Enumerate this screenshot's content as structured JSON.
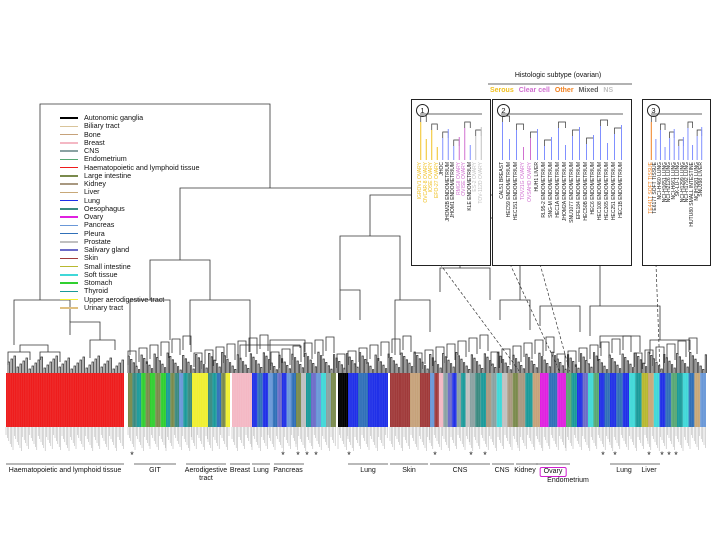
{
  "legend": [
    {
      "label": "Autonomic ganglia",
      "color": "#000000"
    },
    {
      "label": "Biliary tract",
      "color": "#d9c49a"
    },
    {
      "label": "Bone",
      "color": "#c6a27a"
    },
    {
      "label": "Breast",
      "color": "#f4b8c4"
    },
    {
      "label": "CNS",
      "color": "#8aa2a2"
    },
    {
      "label": "Endometrium",
      "color": "#58a874"
    },
    {
      "label": "Haematopoietic and lymphoid tissue",
      "color": "#ee1c1c"
    },
    {
      "label": "Large intestine",
      "color": "#7a8a4c"
    },
    {
      "label": "Kidney",
      "color": "#a89880"
    },
    {
      "label": "Liver",
      "color": "#c8a878"
    },
    {
      "label": "Lung",
      "color": "#2030e8"
    },
    {
      "label": "Oesophagus",
      "color": "#3a8a80"
    },
    {
      "label": "Ovary",
      "color": "#e020e0"
    },
    {
      "label": "Pancreas",
      "color": "#6a98d8"
    },
    {
      "label": "Pleura",
      "color": "#3070b8"
    },
    {
      "label": "Prostate",
      "color": "#c0c0c0"
    },
    {
      "label": "Salivary gland",
      "color": "#6c6cc8"
    },
    {
      "label": "Skin",
      "color": "#a03a3a"
    },
    {
      "label": "Small intestine",
      "color": "#b8b830"
    },
    {
      "label": "Soft tissue",
      "color": "#40d8d8"
    },
    {
      "label": "Stomach",
      "color": "#30d030"
    },
    {
      "label": "Thyroid",
      "color": "#1a9a9a"
    },
    {
      "label": "Upper aerodigestive tract",
      "color": "#f0f030"
    },
    {
      "label": "Urinary tract",
      "color": "#e0c080"
    }
  ],
  "tissue_labels": [
    {
      "text": "Haematopoietic and lymphoid tissue"
    },
    {
      "text": "GIT"
    },
    {
      "text": "Aerodigestive\ntract"
    },
    {
      "text": "Breast"
    },
    {
      "text": "Lung"
    },
    {
      "text": "Pancreas"
    },
    {
      "text": "Lung"
    },
    {
      "text": "Skin"
    },
    {
      "text": "CNS"
    },
    {
      "text": "CNS"
    },
    {
      "text": "Kidney"
    },
    {
      "text": "Ovary"
    },
    {
      "text": "Endometrium"
    },
    {
      "text": "Lung"
    },
    {
      "text": "Liver"
    }
  ],
  "histology": {
    "title": "Histologic subtype (ovarian)",
    "items": [
      {
        "label": "Serous",
        "color": "#f0c020"
      },
      {
        "label": "Clear cell",
        "color": "#d070d0"
      },
      {
        "label": "Other",
        "color": "#f08020"
      },
      {
        "label": "Mixed",
        "color": "#606060"
      },
      {
        "label": "NS",
        "color": "#c0c0c0"
      }
    ]
  },
  "insets": [
    {
      "num": "1",
      "labels": [
        "IGROV1 OVARY",
        "OVCAR-8 OVARY",
        "IOSE OVARY",
        "EFO-27 OVARY",
        "JHOC",
        "JHOM2B ENDOMETRIUM",
        "JHOM1 ENDOMETRIUM",
        "RMGII OVARY",
        "OVISE OVARY",
        "KLE ENDOMETRIUM",
        "ES-2 OVARY",
        "TOV-112D OVARY"
      ]
    },
    {
      "num": "2",
      "labels": [
        "CAL51 BREAST",
        "HEC59 ENDOMETRIUM",
        "HEC151 ENDOMETRIUM",
        "TOV21G OVARY",
        "OVSAHO OVARY",
        "HUH1 LIVER",
        "RL95-2 ENDOMETRIUM",
        "SNG-M ENDOMETRIUM",
        "HEC1A ENDOMETRIUM",
        "JHOM2A ENDOMETRIUM",
        "SNU1077 ENDOMETRIUM",
        "EFE184 ENDOMETRIUM",
        "HEC50B ENDOMETRIUM",
        "HEC6 ENDOMETRIUM",
        "HEC108 ENDOMETRIUM",
        "HEC265 ENDOMETRIUM",
        "HEC251 ENDOMETRIUM",
        "HEC1B ENDOMETRIUM"
      ]
    },
    {
      "num": "3",
      "labels": [
        "TE441T SOFT TISSUE",
        "TE617T SOFT TISSUE",
        "NCI-H460 LUNG",
        "NCI-H1651 LUNG",
        "NCI-H2126 LUNG",
        "NCI-H661 LUNG",
        "SK-LU-1 LUNG",
        "NCI-H1299 LUNG",
        "NCI-H1792 LUNG",
        "HUTU80 SMALL INTESTINE",
        "NCIH1581 LUNG",
        "SNU398 LIVER"
      ]
    }
  ]
}
